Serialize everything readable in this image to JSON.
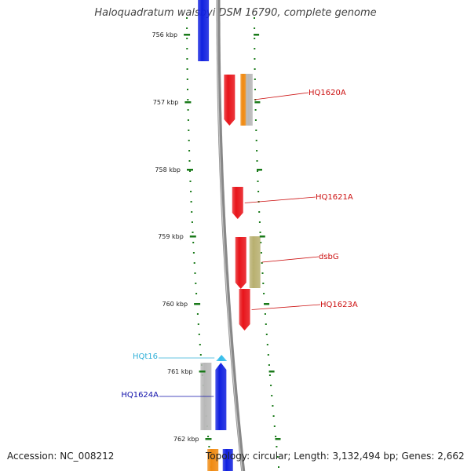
{
  "title": "Haloquadratum walsbyi DSM 16790, complete genome",
  "accession_text": "Accession: NC_008212",
  "summary_text": "Topology: circular; Length: 3,132,494 bp; Genes: 2,662",
  "colors": {
    "backbone": "#888888",
    "ruler_tick": "#1a7a1a",
    "ruler_text": "#222222",
    "cds_red": "#e8141a",
    "cds_blue": "#1020e0",
    "cds_grey": "#b8b8b8",
    "cds_orange": "#f08a10",
    "cds_olive": "#b8b070",
    "trna_cyan": "#34bdea",
    "label_red": "#cc1010",
    "label_blue": "#1010aa",
    "label_cyan": "#30b0d8"
  },
  "ruler_labels": [
    "756 kbp",
    "757 kbp",
    "758 kbp",
    "759 kbp",
    "760 kbp",
    "761 kbp",
    "762 kbp"
  ],
  "genes": [
    {
      "label": "",
      "color": "cds_blue",
      "strand": "+"
    },
    {
      "label": "",
      "color": "cds_red",
      "strand": "+"
    },
    {
      "label": "",
      "color": "cds_orange",
      "strand": "+"
    },
    {
      "label": "HQ1620A",
      "color": "cds_grey",
      "strand": "+"
    },
    {
      "label": "HQ1621A",
      "color": "cds_red",
      "strand": "+"
    },
    {
      "label": "",
      "color": "cds_red",
      "strand": "+"
    },
    {
      "label": "dsbG",
      "color": "cds_olive",
      "strand": "+"
    },
    {
      "label": "HQ1623A",
      "color": "cds_red",
      "strand": "+"
    },
    {
      "label": "HQt16",
      "color": "trna_cyan",
      "strand": "-"
    },
    {
      "label": "",
      "color": "cds_grey",
      "strand": "+"
    },
    {
      "label": "HQ1624A",
      "color": "cds_blue",
      "strand": "-"
    },
    {
      "label": "",
      "color": "cds_orange",
      "strand": "+"
    },
    {
      "label": "",
      "color": "cds_blue",
      "strand": "+"
    }
  ]
}
